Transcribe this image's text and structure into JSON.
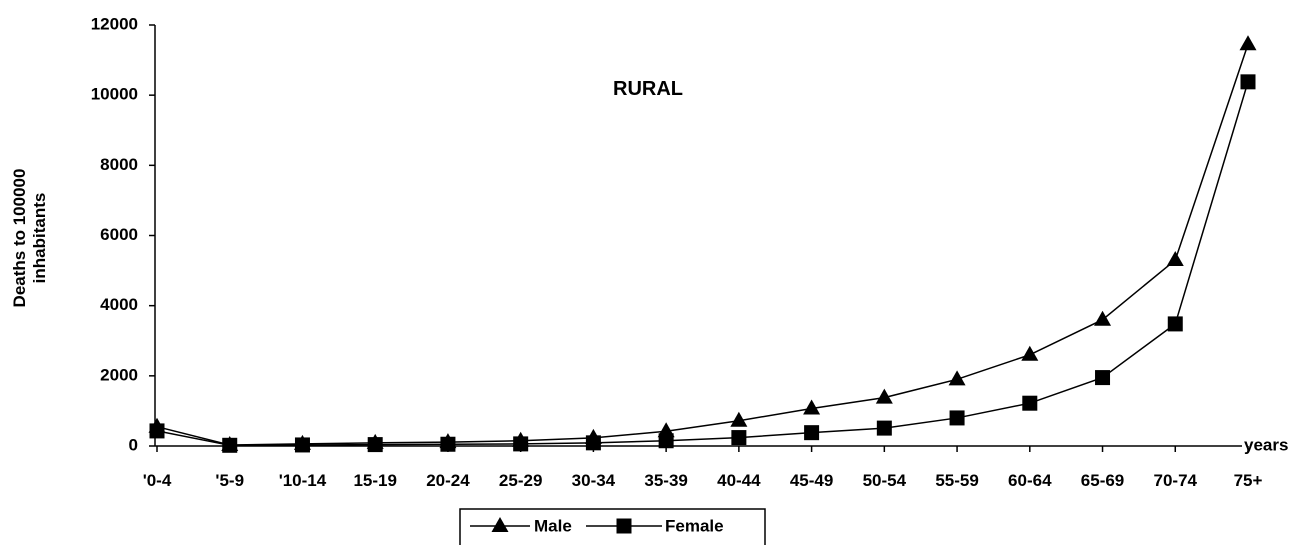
{
  "chart_data": {
    "type": "line",
    "title": "RURAL",
    "xlabel": "years",
    "ylabel": [
      "Deaths to 100000",
      "inhabitants"
    ],
    "categories": [
      "'0-4",
      "'5-9",
      "'10-14",
      "15-19",
      "20-24",
      "25-29",
      "30-34",
      "35-39",
      "40-44",
      "45-49",
      "50-54",
      "55-59",
      "60-64",
      "65-69",
      "70-74",
      "75+"
    ],
    "ylim": [
      0,
      12000
    ],
    "yticks": [
      "0",
      "2000",
      "4000",
      "6000",
      "8000",
      "10000",
      "12000"
    ],
    "grid": false,
    "legend_position": "bottom",
    "series": [
      {
        "name": "Male",
        "marker": "triangle",
        "color": "#000000",
        "values": [
          550,
          30,
          60,
          90,
          110,
          150,
          230,
          420,
          720,
          1070,
          1380,
          1900,
          2600,
          3600,
          5300,
          11450
        ]
      },
      {
        "name": "Female",
        "marker": "square",
        "color": "#000000",
        "values": [
          430,
          20,
          30,
          40,
          50,
          60,
          90,
          150,
          240,
          380,
          510,
          800,
          1220,
          1950,
          3480,
          10380
        ]
      }
    ]
  }
}
